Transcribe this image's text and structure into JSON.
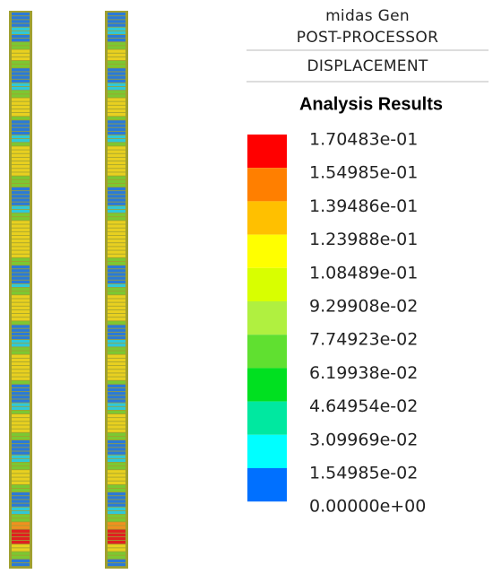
{
  "header": {
    "program": "midas Gen",
    "module": "POST-PROCESSOR",
    "result": "DISPLACEMENT",
    "title": "Analysis Results"
  },
  "legend": {
    "labels": [
      "1.70483e-01",
      "1.54985e-01",
      "1.39486e-01",
      "1.23988e-01",
      "1.08489e-01",
      "9.29908e-02",
      "7.74923e-02",
      "6.19938e-02",
      "4.64954e-02",
      "3.09969e-02",
      "1.54985e-02",
      "0.00000e+00"
    ],
    "colors": [
      "#ff0000",
      "#ff7f00",
      "#ffc000",
      "#ffff00",
      "#d8ff00",
      "#b0f040",
      "#60e030",
      "#00e020",
      "#00e8a0",
      "#00ffff",
      "#0070ff"
    ]
  }
}
